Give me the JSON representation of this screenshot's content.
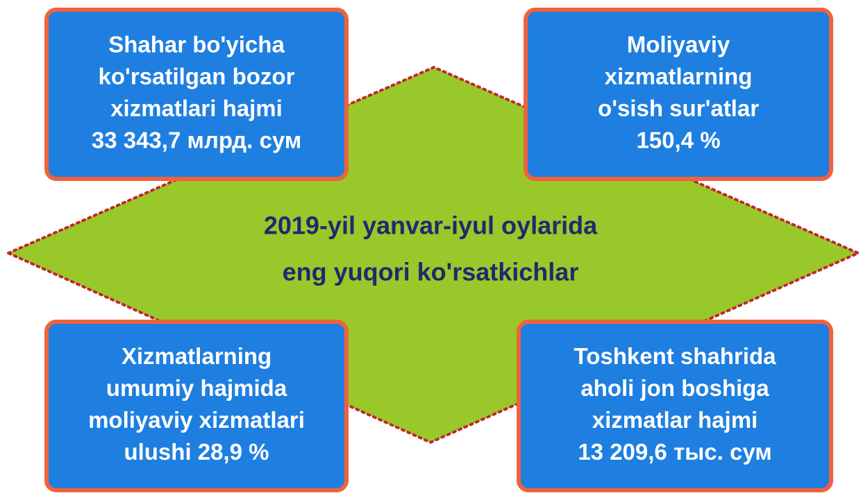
{
  "center": {
    "lines": [
      "2019-yil yanvar-iyul oylarida",
      "eng yuqori ko'rsatkichlar"
    ]
  },
  "boxes": [
    {
      "lines": [
        "Shahar bo'yicha",
        "ko'rsatilgan bozor",
        "xizmatlari hajmi",
        "33 343,7 млрд. сум"
      ]
    },
    {
      "lines": [
        "Moliyaviy",
        "xizmatlarning",
        "o'sish sur'atlar",
        "150,4 %"
      ]
    },
    {
      "lines": [
        "Xizmatlarning",
        "umumiy hajmida",
        "moliyaviy xizmatlari",
        "ulushi 28,9 %"
      ]
    },
    {
      "lines": [
        "Toshkent shahrida",
        "aholi jon boshiga",
        "xizmatlar hajmi",
        "13 209,6 тыс. сум"
      ]
    }
  ]
}
